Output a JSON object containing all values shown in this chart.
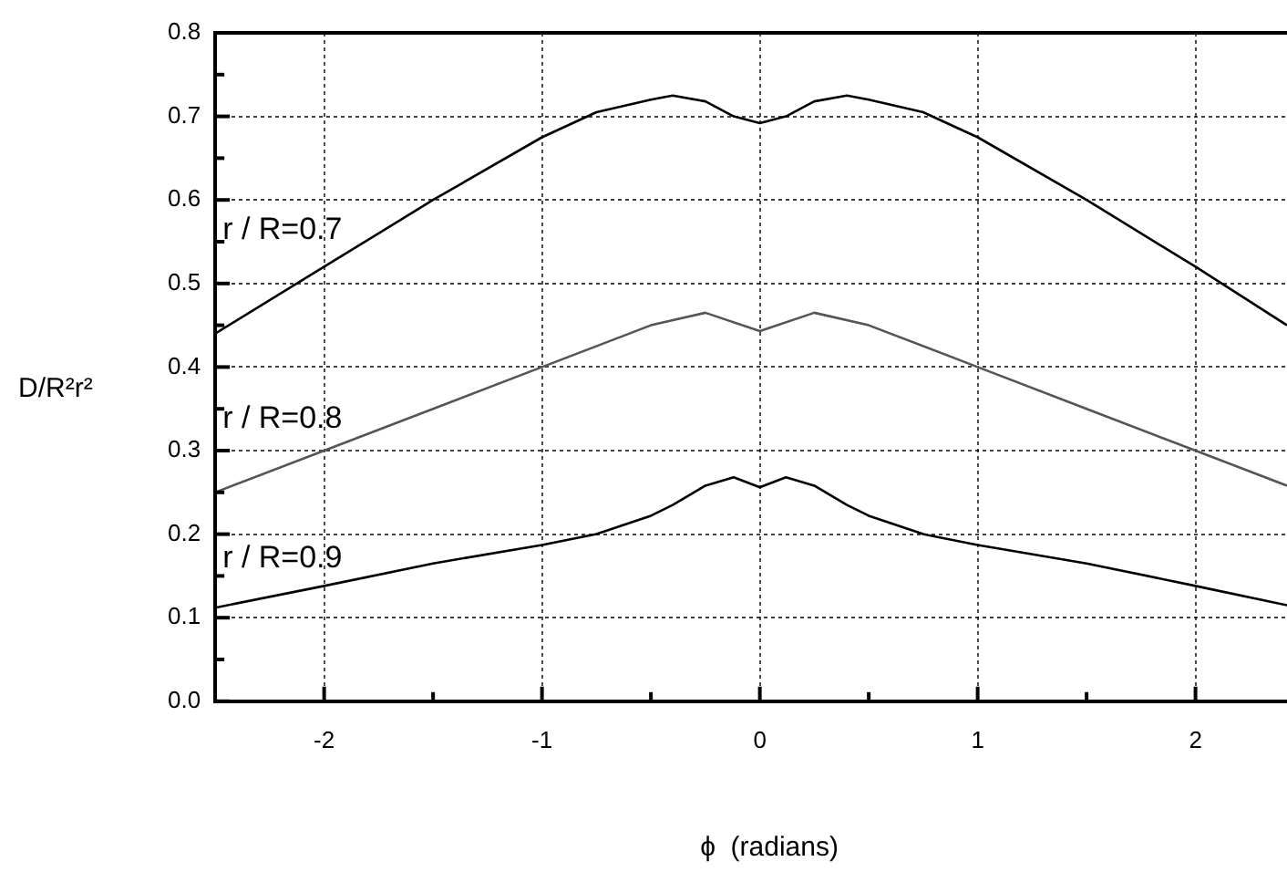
{
  "chart_data": {
    "type": "line",
    "xlabel": "ϕ  (radians)",
    "ylabel": "D/R²r²",
    "xlim": [
      -2.5,
      2.42
    ],
    "xticks": [
      {
        "value": -2,
        "label": "-2"
      },
      {
        "value": -1.5,
        "label": null
      },
      {
        "value": -1,
        "label": "-1"
      },
      {
        "value": -0.5,
        "label": null
      },
      0,
      {
        "value": 0.5,
        "label": null
      },
      1,
      {
        "value": 1.5,
        "label": null
      },
      2
    ],
    "ylim": [
      0,
      0.8
    ],
    "yticks": [
      {
        "value": 0,
        "label": "0.0"
      },
      {
        "value": 0.05,
        "label": null
      },
      0.1,
      {
        "value": 0.15,
        "label": null
      },
      0.2,
      {
        "value": 0.25,
        "label": null
      },
      0.3,
      {
        "value": 0.35,
        "label": null
      },
      0.4,
      {
        "value": 0.45,
        "label": null
      },
      0.5,
      {
        "value": 0.55,
        "label": null
      },
      0.6,
      {
        "value": 0.65,
        "label": null
      },
      0.7,
      {
        "value": 0.75,
        "label": null
      },
      0.8
    ],
    "x": [
      -2.5,
      -2,
      -1.5,
      -1,
      -0.75,
      -0.5,
      -0.4,
      -0.25,
      -0.12,
      0,
      0.12,
      0.25,
      0.4,
      0.5,
      0.75,
      1,
      1.5,
      2,
      2.42
    ],
    "series": [
      {
        "name": "r / R=0.7",
        "color": "#000000",
        "values": [
          0.44,
          0.52,
          0.6,
          0.675,
          0.705,
          0.72,
          0.725,
          0.718,
          0.7,
          0.692,
          0.7,
          0.718,
          0.725,
          0.72,
          0.705,
          0.675,
          0.6,
          0.52,
          0.45
        ]
      },
      {
        "name": "r / R=0.8",
        "color": "#555555",
        "x": [
          -2.5,
          -2,
          -1.5,
          -1,
          -0.5,
          -0.25,
          0,
          0.25,
          0.5,
          1,
          1.5,
          2,
          2.42
        ],
        "values": [
          0.25,
          0.3,
          0.35,
          0.4,
          0.45,
          0.465,
          0.443,
          0.465,
          0.45,
          0.4,
          0.35,
          0.3,
          0.258
        ]
      },
      {
        "name": "r / R=0.9",
        "color": "#000000",
        "values": [
          0.112,
          0.138,
          0.165,
          0.187,
          0.2,
          0.222,
          0.235,
          0.258,
          0.268,
          0.256,
          0.268,
          0.258,
          0.235,
          0.222,
          0.2,
          0.187,
          0.165,
          0.138,
          0.115
        ]
      }
    ],
    "grid": true,
    "legend": false,
    "marker": "none",
    "line_style": "solid"
  }
}
